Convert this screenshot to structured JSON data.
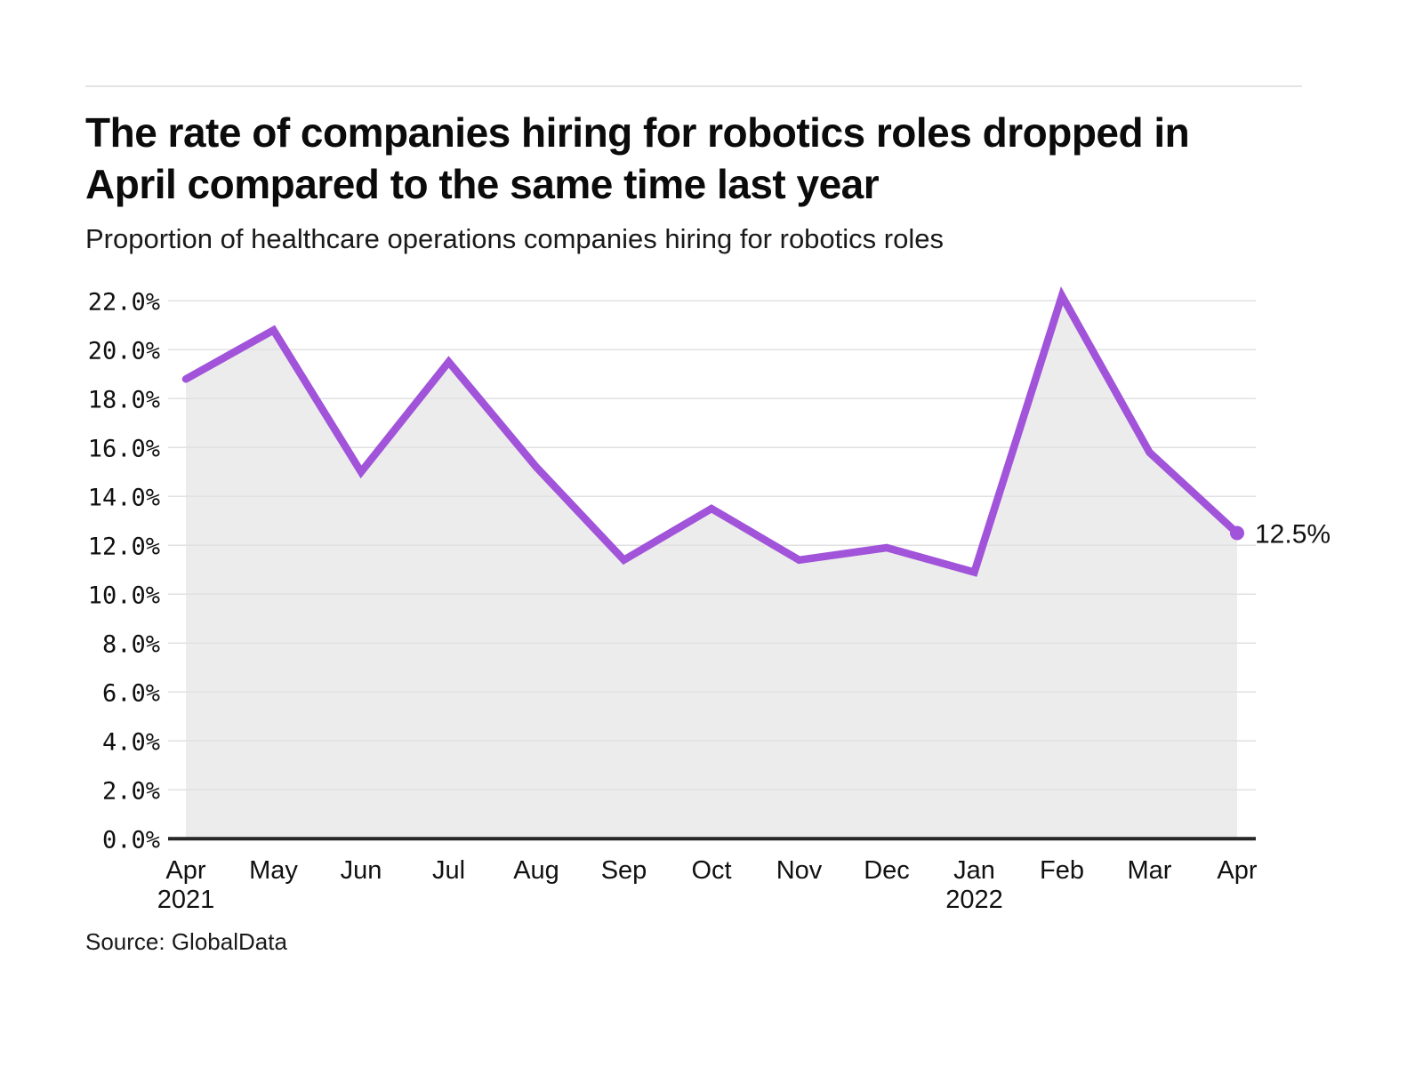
{
  "page": {
    "title": "The rate of companies hiring for robotics roles dropped in\nApril compared to the same time last year",
    "subtitle": "Proportion of healthcare operations companies hiring for robotics roles",
    "source": "Source: GlobalData"
  },
  "chart_data": {
    "type": "area",
    "title": "Proportion of healthcare operations companies hiring for robotics roles",
    "categories": [
      "Apr 2021",
      "May",
      "Jun",
      "Jul",
      "Aug",
      "Sep",
      "Oct",
      "Nov",
      "Dec",
      "Jan 2022",
      "Feb",
      "Mar",
      "Apr 2022"
    ],
    "values": [
      18.8,
      20.8,
      15.0,
      19.5,
      15.2,
      11.4,
      13.5,
      11.4,
      11.9,
      10.9,
      22.2,
      15.8,
      12.5
    ],
    "unit": "%",
    "xlabel": "",
    "ylabel": "",
    "ylim": [
      0,
      22
    ],
    "y_tick_step": 2,
    "y_tick_labels": [
      "0.0%",
      "2.0%",
      "4.0%",
      "6.0%",
      "8.0%",
      "10.0%",
      "12.0%",
      "14.0%",
      "16.0%",
      "18.0%",
      "20.0%",
      "22.0%"
    ],
    "x_tick_labels": [
      {
        "month": "Apr",
        "year": "2021"
      },
      {
        "month": "May"
      },
      {
        "month": "Jun"
      },
      {
        "month": "Jul"
      },
      {
        "month": "Aug"
      },
      {
        "month": "Sep"
      },
      {
        "month": "Oct"
      },
      {
        "month": "Nov"
      },
      {
        "month": "Dec"
      },
      {
        "month": "Jan",
        "year": "2022"
      },
      {
        "month": "Feb"
      },
      {
        "month": "Mar"
      },
      {
        "month": "Apr"
      }
    ],
    "end_label": "12.5%",
    "grid": true,
    "legend": "none",
    "colors": {
      "line": "#a153d9",
      "marker": "#a153d9",
      "area_fill": "#ececec",
      "gridline": "#e1e1e1",
      "axis": "#262626"
    }
  }
}
